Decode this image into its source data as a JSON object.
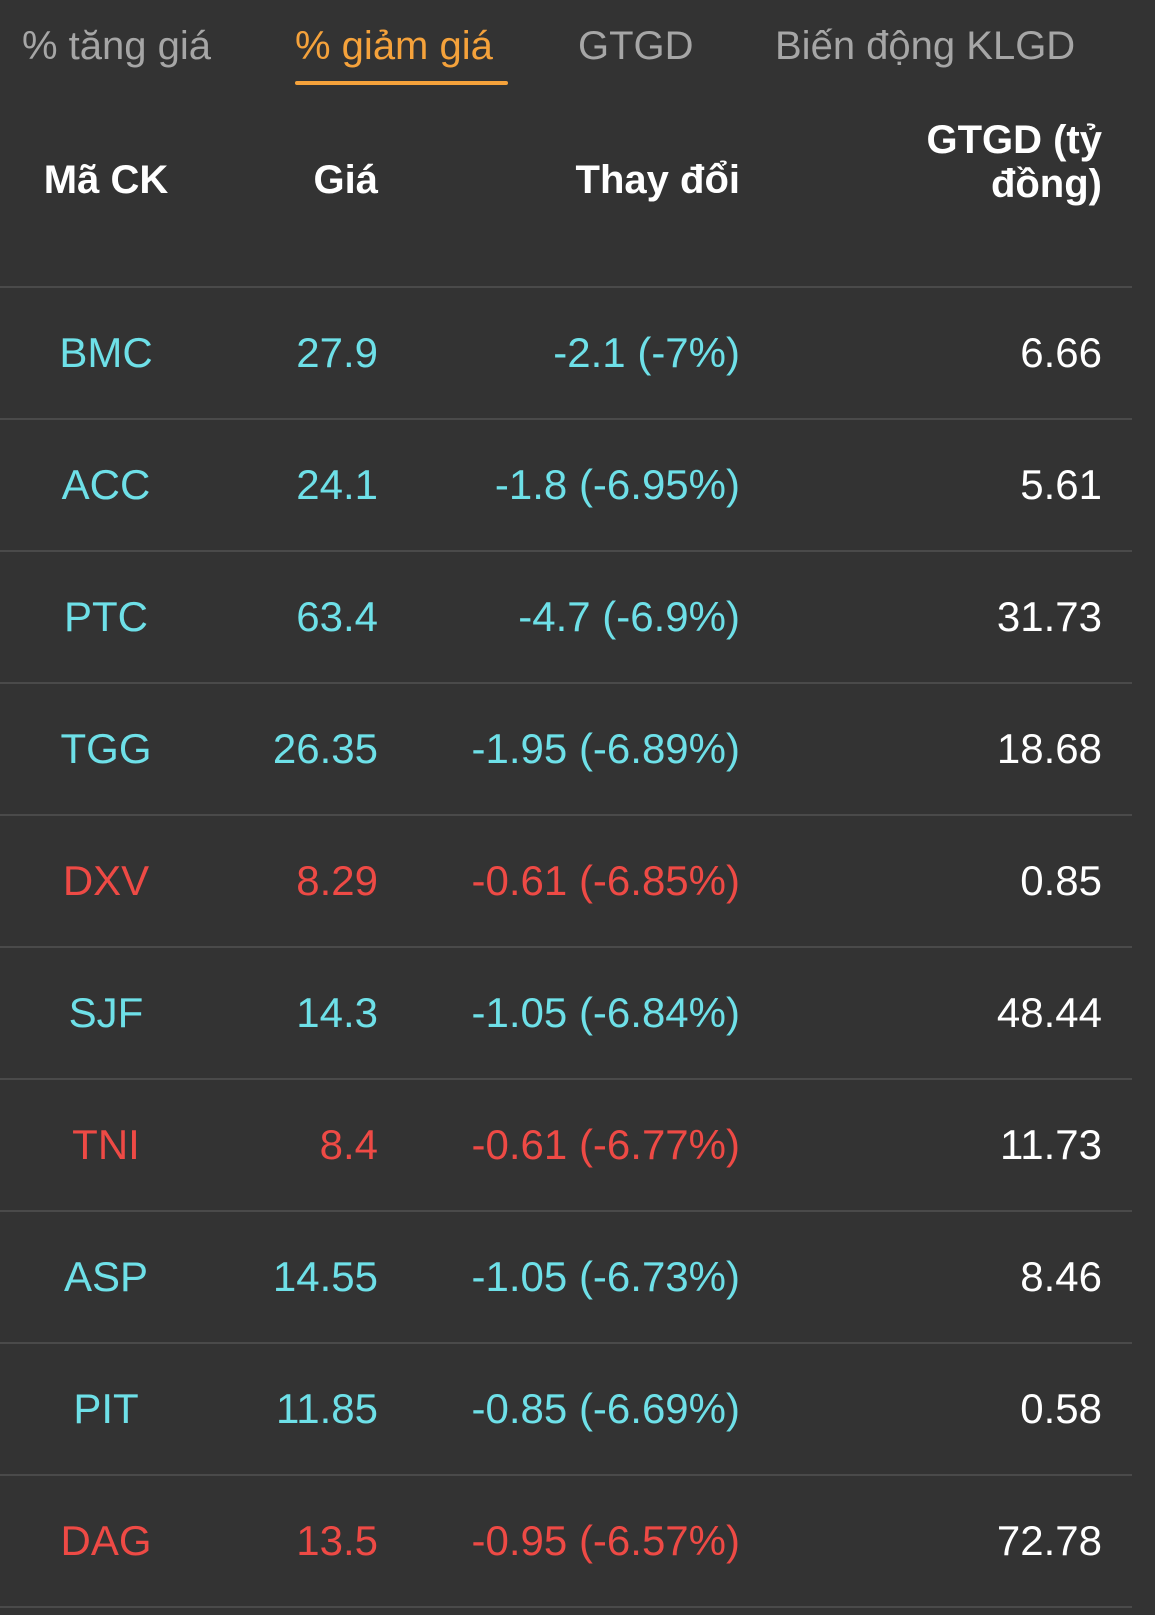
{
  "tabs": [
    {
      "label": "% tăng giá",
      "active": false
    },
    {
      "label": "% giảm giá",
      "active": true
    },
    {
      "label": "GTGD",
      "active": false
    },
    {
      "label": "Biến động KLGD",
      "active": false
    }
  ],
  "table": {
    "headers": {
      "symbol": "Mã CK",
      "price": "Giá",
      "change": "Thay đổi",
      "value_line1": "GTGD (tỷ",
      "value_line2": "đồng)"
    },
    "rows": [
      {
        "symbol": "BMC",
        "price": "27.9",
        "change": "-2.1 (-7%)",
        "value": "6.66",
        "status": "down"
      },
      {
        "symbol": "ACC",
        "price": "24.1",
        "change": "-1.8 (-6.95%)",
        "value": "5.61",
        "status": "down"
      },
      {
        "symbol": "PTC",
        "price": "63.4",
        "change": "-4.7 (-6.9%)",
        "value": "31.73",
        "status": "down"
      },
      {
        "symbol": "TGG",
        "price": "26.35",
        "change": "-1.95 (-6.89%)",
        "value": "18.68",
        "status": "down"
      },
      {
        "symbol": "DXV",
        "price": "8.29",
        "change": "-0.61 (-6.85%)",
        "value": "0.85",
        "status": "floor"
      },
      {
        "symbol": "SJF",
        "price": "14.3",
        "change": "-1.05 (-6.84%)",
        "value": "48.44",
        "status": "down"
      },
      {
        "symbol": "TNI",
        "price": "8.4",
        "change": "-0.61 (-6.77%)",
        "value": "11.73",
        "status": "floor"
      },
      {
        "symbol": "ASP",
        "price": "14.55",
        "change": "-1.05 (-6.73%)",
        "value": "8.46",
        "status": "down"
      },
      {
        "symbol": "PIT",
        "price": "11.85",
        "change": "-0.85 (-6.69%)",
        "value": "0.58",
        "status": "down"
      },
      {
        "symbol": "DAG",
        "price": "13.5",
        "change": "-0.95 (-6.57%)",
        "value": "72.78",
        "status": "floor"
      }
    ]
  },
  "colors": {
    "background": "#333333",
    "tab_inactive": "#a6a6a6",
    "tab_active": "#f5a23b",
    "down": "#6ee0e8",
    "floor": "#ee4a45",
    "divider": "#4a4a4a"
  }
}
